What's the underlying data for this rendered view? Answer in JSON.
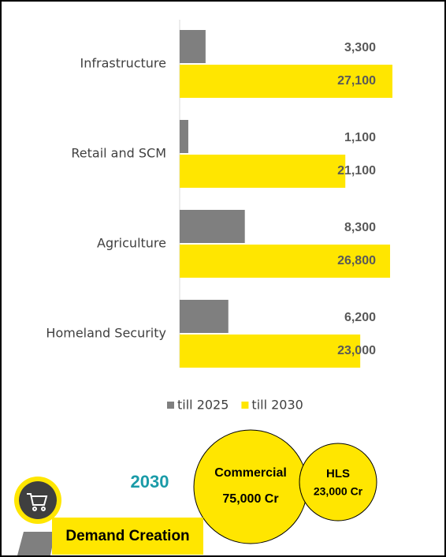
{
  "chart_data": {
    "type": "bar",
    "orientation": "horizontal",
    "categories": [
      "Infrastructure",
      "Retail and SCM",
      "Agriculture",
      "Homeland Security"
    ],
    "series": [
      {
        "name": "till 2025",
        "color": "#7f7f7f",
        "values": [
          3300,
          1100,
          8300,
          6200
        ],
        "value_labels": [
          "3,300",
          "1,100",
          "8,300",
          "6,200"
        ]
      },
      {
        "name": "till 2030",
        "color": "#ffe600",
        "values": [
          27100,
          21100,
          26800,
          23000
        ],
        "value_labels": [
          "27,100",
          "21,100",
          "26,800",
          "23,000"
        ]
      }
    ],
    "xlim": [
      0,
      27500
    ],
    "legend": "bottom"
  },
  "summary": {
    "year": "2030",
    "bubbles": [
      {
        "title": "Commercial",
        "value": "75,000 Cr"
      },
      {
        "title": "HLS",
        "value": "23,000 Cr"
      }
    ],
    "banner": "Demand Creation"
  }
}
